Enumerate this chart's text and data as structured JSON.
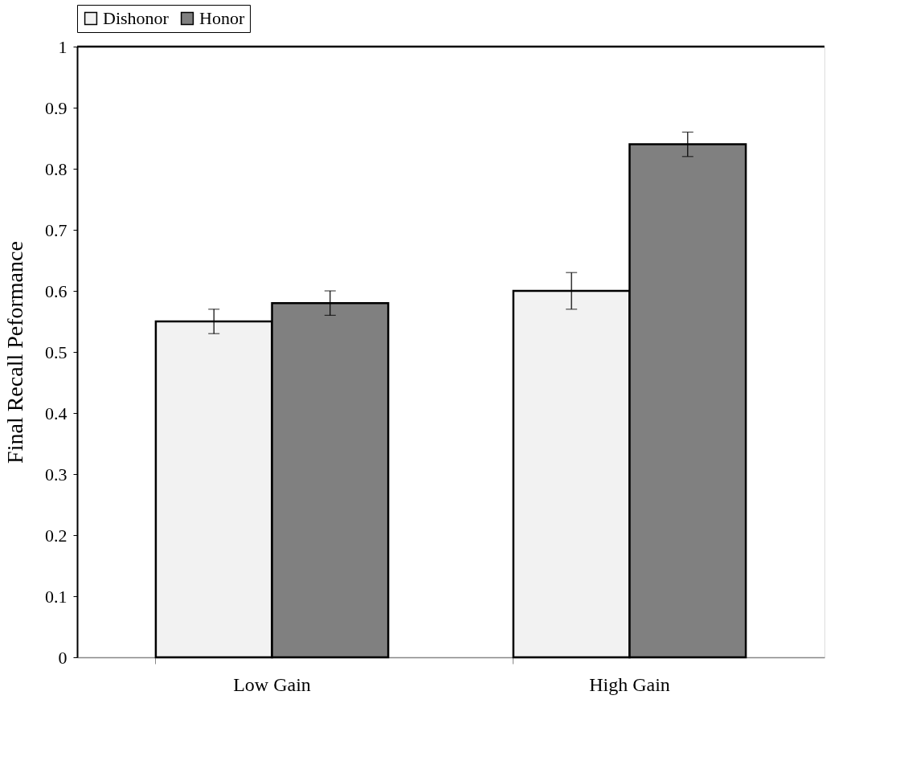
{
  "chart_data": {
    "type": "bar",
    "ylabel": "Final Recall Peformance",
    "categories": [
      "Low Gain",
      "High Gain"
    ],
    "series": [
      {
        "name": "Dishonor",
        "color": "#f2f2f2",
        "values": [
          0.55,
          0.6
        ],
        "errors": [
          0.02,
          0.03
        ]
      },
      {
        "name": "Honor",
        "color": "#808080",
        "values": [
          0.58,
          0.84
        ],
        "errors": [
          0.02,
          0.02
        ]
      }
    ],
    "ylim": [
      0,
      1
    ],
    "yticks": [
      0,
      0.1,
      0.2,
      0.3,
      0.4,
      0.5,
      0.6,
      0.7,
      0.8,
      0.9,
      1
    ],
    "grid": false,
    "legend": "top"
  }
}
